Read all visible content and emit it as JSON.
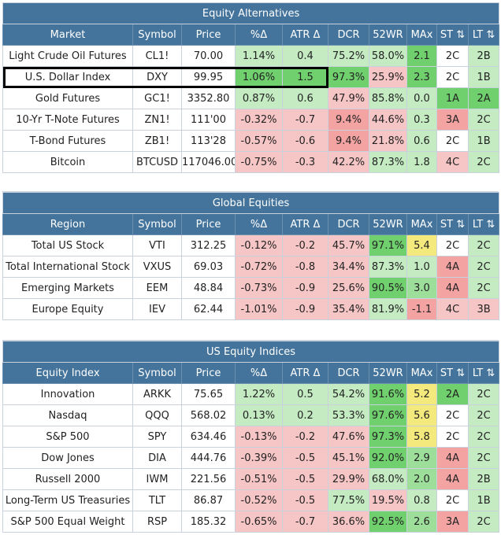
{
  "sections": [
    {
      "title": "Equity Alternatives",
      "headers": [
        "Market",
        "Symbol",
        "Price",
        "%Δ",
        "ATR Δ",
        "DCR",
        "52WR",
        "MAx",
        "ST ⇅",
        "LT ⇅"
      ],
      "rows": [
        {
          "cells": [
            "Light Crude Oil Futures",
            "CL1!",
            "70.00",
            "1.14%",
            "0.4",
            "75.2%",
            "58.0%",
            "2.1",
            "2C",
            "2B"
          ],
          "colors": [
            "",
            "",
            "",
            "c-lgreen",
            "c-lgreen",
            "c-lgreen",
            "c-lgreen",
            "c-mgreen",
            "",
            "c-lgreen"
          ]
        },
        {
          "cells": [
            "U.S. Dollar Index",
            "DXY",
            "99.95",
            "1.06%",
            "1.5",
            "97.3%",
            "25.9%",
            "2.3",
            "2C",
            "1B"
          ],
          "colors": [
            "",
            "",
            "",
            "c-mgreen",
            "c-mgreen",
            "c-mgreen",
            "c-red",
            "c-mgreen",
            "",
            "c-lgreen"
          ]
        },
        {
          "cells": [
            "Gold Futures",
            "GC1!",
            "3352.80",
            "0.87%",
            "0.6",
            "47.9%",
            "85.8%",
            "0.0",
            "1A",
            "2A"
          ],
          "colors": [
            "",
            "",
            "",
            "c-lgreen",
            "c-lgreen",
            "c-red",
            "c-lgreen",
            "c-lgreen",
            "c-mgreen",
            "c-mgreen"
          ]
        },
        {
          "cells": [
            "10-Yr T-Note Futures",
            "ZN1!",
            "111'00",
            "-0.32%",
            "-0.7",
            "9.4%",
            "44.6%",
            "0.3",
            "3A",
            "2C"
          ],
          "colors": [
            "",
            "",
            "",
            "c-red",
            "c-red",
            "c-dred",
            "c-red",
            "c-lgreen",
            "c-dred",
            "c-lgreen"
          ]
        },
        {
          "cells": [
            "T-Bond Futures",
            "ZB1!",
            "113'28",
            "-0.57%",
            "-0.6",
            "9.4%",
            "21.8%",
            "0.6",
            "2C",
            "1B"
          ],
          "colors": [
            "",
            "",
            "",
            "c-red",
            "c-red",
            "c-dred",
            "c-red",
            "c-lgreen",
            "",
            "c-lgreen"
          ]
        },
        {
          "cells": [
            "Bitcoin",
            "BTCUSD",
            "117046.00",
            "-0.75%",
            "-0.3",
            "42.2%",
            "87.3%",
            "1.8",
            "4C",
            "2C"
          ],
          "colors": [
            "",
            "",
            "",
            "c-red",
            "c-red",
            "c-red",
            "c-lgreen",
            "c-lgreen",
            "c-red",
            "c-lgreen"
          ]
        }
      ]
    },
    {
      "title": "Global Equities",
      "headers": [
        "Region",
        "Symbol",
        "Price",
        "%Δ",
        "ATR Δ",
        "DCR",
        "52WR",
        "MAx",
        "ST ⇅",
        "LT ⇅"
      ],
      "rows": [
        {
          "cells": [
            "Total US Stock",
            "VTI",
            "312.25",
            "-0.12%",
            "-0.2",
            "45.7%",
            "97.1%",
            "5.4",
            "2C",
            "2C"
          ],
          "colors": [
            "",
            "",
            "",
            "c-red",
            "c-red",
            "c-red",
            "c-mgreen",
            "c-yellow",
            "",
            "c-lgreen"
          ]
        },
        {
          "cells": [
            "Total International Stock",
            "VXUS",
            "69.03",
            "-0.72%",
            "-0.8",
            "34.4%",
            "87.3%",
            "1.0",
            "4A",
            "2C"
          ],
          "colors": [
            "",
            "",
            "",
            "c-red",
            "c-red",
            "c-red",
            "c-lgreen",
            "c-lgreen",
            "c-dred",
            "c-lgreen"
          ]
        },
        {
          "cells": [
            "Emerging Markets",
            "EEM",
            "48.84",
            "-0.73%",
            "-0.9",
            "25.6%",
            "90.5%",
            "3.0",
            "4A",
            "2C"
          ],
          "colors": [
            "",
            "",
            "",
            "c-red",
            "c-red",
            "c-red",
            "c-mgreen",
            "c-green",
            "c-dred",
            "c-lgreen"
          ]
        },
        {
          "cells": [
            "Europe Equity",
            "IEV",
            "62.44",
            "-1.01%",
            "-0.9",
            "35.4%",
            "81.9%",
            "-1.1",
            "4C",
            "3B"
          ],
          "colors": [
            "",
            "",
            "",
            "c-red",
            "c-red",
            "c-red",
            "c-lgreen",
            "c-dred",
            "c-red",
            "c-red"
          ]
        }
      ]
    },
    {
      "title": "US Equity Indices",
      "headers": [
        "Equity Index",
        "Symbol",
        "Price",
        "%Δ",
        "ATR Δ",
        "DCR",
        "52WR",
        "MAx",
        "ST ⇅",
        "LT ⇅"
      ],
      "rows": [
        {
          "cells": [
            "Innovation",
            "ARKK",
            "75.65",
            "1.22%",
            "0.5",
            "54.2%",
            "91.6%",
            "5.2",
            "2A",
            "2C"
          ],
          "colors": [
            "",
            "",
            "",
            "c-lgreen",
            "c-lgreen",
            "c-lgreen",
            "c-mgreen",
            "c-yellow",
            "c-mgreen",
            "c-lgreen"
          ]
        },
        {
          "cells": [
            "Nasdaq",
            "QQQ",
            "568.02",
            "0.13%",
            "0.2",
            "53.3%",
            "97.6%",
            "5.6",
            "2C",
            "2C"
          ],
          "colors": [
            "",
            "",
            "",
            "c-lgreen",
            "c-lgreen",
            "c-lgreen",
            "c-mgreen",
            "c-yellow",
            "",
            "c-lgreen"
          ]
        },
        {
          "cells": [
            "S&P 500",
            "SPY",
            "634.46",
            "-0.13%",
            "-0.2",
            "47.6%",
            "97.3%",
            "5.8",
            "2C",
            "2C"
          ],
          "colors": [
            "",
            "",
            "",
            "c-red",
            "c-red",
            "c-red",
            "c-mgreen",
            "c-yellow",
            "",
            "c-lgreen"
          ]
        },
        {
          "cells": [
            "Dow Jones",
            "DIA",
            "444.76",
            "-0.39%",
            "-0.5",
            "45.1%",
            "92.0%",
            "2.9",
            "4A",
            "2C"
          ],
          "colors": [
            "",
            "",
            "",
            "c-red",
            "c-red",
            "c-red",
            "c-mgreen",
            "c-green",
            "c-dred",
            "c-lgreen"
          ]
        },
        {
          "cells": [
            "Russell 2000",
            "IWM",
            "221.56",
            "-0.51%",
            "-0.5",
            "29.9%",
            "68.0%",
            "2.0",
            "4A",
            "2B"
          ],
          "colors": [
            "",
            "",
            "",
            "c-red",
            "c-red",
            "c-red",
            "c-lgreen",
            "c-green",
            "c-dred",
            "c-lgreen"
          ]
        },
        {
          "cells": [
            "Long-Term US Treasuries",
            "TLT",
            "86.87",
            "-0.52%",
            "-0.5",
            "77.5%",
            "19.5%",
            "0.8",
            "2C",
            "1B"
          ],
          "colors": [
            "",
            "",
            "",
            "c-red",
            "c-red",
            "c-lgreen",
            "c-red",
            "c-lgreen",
            "",
            "c-lgreen"
          ]
        },
        {
          "cells": [
            "S&P 500 Equal Weight",
            "RSP",
            "185.32",
            "-0.65%",
            "-0.7",
            "36.6%",
            "92.5%",
            "2.6",
            "3A",
            "2C"
          ],
          "colors": [
            "",
            "",
            "",
            "c-red",
            "c-red",
            "c-red",
            "c-mgreen",
            "c-green",
            "c-dred",
            "c-lgreen"
          ]
        }
      ]
    }
  ],
  "highlight": {
    "section": 0,
    "row": 1,
    "from_col": 0,
    "to_col": 4
  }
}
